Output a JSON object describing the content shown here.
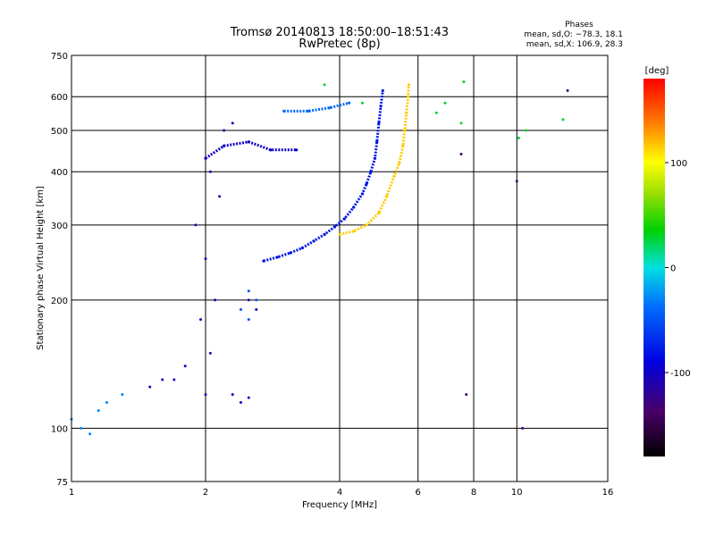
{
  "chart_data": {
    "type": "scatter",
    "title": "Tromsø 20140813 18:50:00–18:51:43",
    "subtitle": "RwPretec (8p)",
    "xlabel": "Frequency [MHz]",
    "ylabel": "Stationary phase Virtual Height [km]",
    "x_scale": "log",
    "y_scale": "log",
    "xlim": [
      1,
      16
    ],
    "ylim": [
      75,
      750
    ],
    "x_ticks": [
      1,
      2,
      4,
      6,
      8,
      10,
      16
    ],
    "y_ticks": [
      75,
      100,
      200,
      300,
      400,
      500,
      600,
      750
    ],
    "grid": true,
    "stats": {
      "header": "Phases",
      "line_o": "mean, sd,O: −78.3, 18.1",
      "line_x": "mean, sd,X: 106.9, 28.3"
    },
    "colorbar": {
      "label": "[deg]",
      "ticks": [
        100,
        0,
        -100
      ],
      "range": [
        -180,
        180
      ],
      "colormap": "rainbow",
      "high_color": "#ff0000",
      "low_color": "#000000"
    },
    "traces": [
      {
        "shape": "o-mode trace, low",
        "x": [
          2.7,
          2.9,
          3.1,
          3.3,
          3.5,
          3.7,
          3.9,
          4.1,
          4.3,
          4.5,
          4.6,
          4.7,
          4.8,
          4.85,
          4.9,
          4.95,
          5.0
        ],
        "y": [
          247,
          252,
          258,
          265,
          275,
          285,
          297,
          310,
          330,
          355,
          375,
          400,
          430,
          470,
          520,
          570,
          620
        ],
        "phase": -80
      },
      {
        "shape": "x-mode trace",
        "x": [
          4.0,
          4.3,
          4.6,
          4.9,
          5.1,
          5.3,
          5.45,
          5.55,
          5.6,
          5.65,
          5.7,
          5.72
        ],
        "y": [
          285,
          290,
          300,
          320,
          350,
          390,
          420,
          460,
          500,
          550,
          600,
          640
        ],
        "phase": 115
      },
      {
        "shape": "o-mode trace, high",
        "x": [
          3.0,
          3.4,
          3.8,
          4.2
        ],
        "y": [
          555,
          555,
          565,
          580
        ],
        "phase": -40
      },
      {
        "shape": "upper-layer echoes",
        "x": [
          2.0,
          2.2,
          2.5,
          2.8,
          3.2
        ],
        "y": [
          430,
          460,
          470,
          450,
          450
        ],
        "phase": -100
      }
    ],
    "scatter": [
      {
        "x": [
          2.0,
          2.05,
          1.95,
          2.1,
          2.0,
          1.9,
          2.15,
          2.05,
          2.2,
          2.3,
          2.5,
          2.6
        ],
        "y": [
          120,
          150,
          180,
          200,
          250,
          300,
          350,
          400,
          500,
          520,
          200,
          190
        ],
        "phase": -110
      },
      {
        "x": [
          1.5,
          1.6,
          1.7,
          1.8,
          2.3,
          2.4,
          2.5
        ],
        "y": [
          125,
          130,
          130,
          140,
          120,
          115,
          118
        ],
        "phase": -100
      },
      {
        "x": [
          1.0,
          1.05,
          1.1,
          1.15,
          1.2,
          1.3
        ],
        "y": [
          105,
          100,
          97,
          110,
          115,
          120
        ],
        "phase": -30
      },
      {
        "x": [
          2.5,
          2.6,
          2.5,
          2.4
        ],
        "y": [
          180,
          200,
          210,
          190
        ],
        "phase": -50
      },
      {
        "x": [
          3.7,
          4.5,
          6.6,
          7.5,
          7.6,
          6.9,
          10.1,
          10.5,
          12.7
        ],
        "y": [
          640,
          580,
          550,
          520,
          650,
          580,
          480,
          500,
          530
        ],
        "phase": 30
      },
      {
        "x": [
          7.5,
          10.0,
          13.0,
          7.7,
          10.3
        ],
        "y": [
          440,
          380,
          620,
          120,
          100
        ],
        "phase": -130
      }
    ]
  }
}
